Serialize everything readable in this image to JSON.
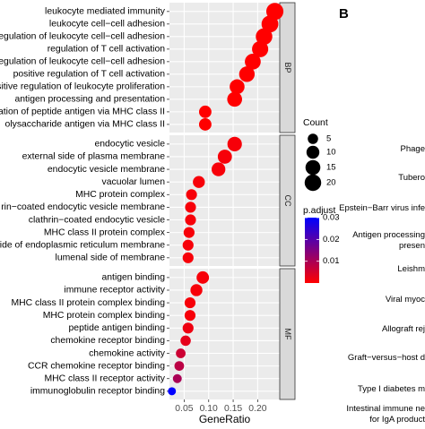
{
  "panel_b_label": "B",
  "chart_data": {
    "type": "scatter",
    "subtype": "dot-plot",
    "xlabel": "GeneRatio",
    "xlim": [
      0.02,
      0.245
    ],
    "xticks": [
      0.05,
      0.1,
      0.15,
      0.2
    ],
    "xtick_labels": [
      "0.05",
      "0.10",
      "0.15",
      "0.20"
    ],
    "grid": true,
    "background": "#ebebeb",
    "legend_placement": "right",
    "count_legend": {
      "title": "Count",
      "values": [
        5,
        10,
        15,
        20
      ],
      "labels": [
        "5",
        "10",
        "15",
        "20"
      ]
    },
    "color_legend": {
      "title": "p.adjust",
      "min": 0.0,
      "max": 0.03,
      "ticks": [
        0.01,
        0.02,
        0.03
      ],
      "tick_labels": [
        "0.01",
        "0.02",
        "0.03"
      ],
      "low_color": "#ff0000",
      "high_color": "#0000ff"
    },
    "facets": [
      {
        "name": "BP",
        "terms": [
          {
            "label": "leukocyte mediated immunity",
            "x": 0.235,
            "count": 22,
            "p": 0.0
          },
          {
            "label": "leukocyte cell−cell adhesion",
            "x": 0.225,
            "count": 21,
            "p": 0.0
          },
          {
            "label": "regulation of leukocyte cell−cell adhesion",
            "x": 0.213,
            "count": 20,
            "p": 0.0
          },
          {
            "label": "regulation of T cell activation",
            "x": 0.205,
            "count": 19,
            "p": 0.0
          },
          {
            "label": "regulation of leukocyte cell−cell adhesion",
            "x": 0.19,
            "count": 18,
            "p": 0.0
          },
          {
            "label": "positive regulation of T cell activation",
            "x": 0.178,
            "count": 17,
            "p": 0.0
          },
          {
            "label": "positive regulation of leukocyte proliferation",
            "x": 0.158,
            "count": 15,
            "p": 0.0
          },
          {
            "label": "antigen processing and presentation",
            "x": 0.153,
            "count": 15,
            "p": 0.0
          },
          {
            "label": "ation of peptide antigen via MHC class II",
            "x": 0.093,
            "count": 9,
            "p": 0.0
          },
          {
            "label": "olysaccharide antigen via MHC class II",
            "x": 0.093,
            "count": 9,
            "p": 0.0
          }
        ]
      },
      {
        "name": "CC",
        "terms": [
          {
            "label": "endocytic vesicle",
            "x": 0.153,
            "count": 14,
            "p": 0.001
          },
          {
            "label": "external side of plasma membrane",
            "x": 0.133,
            "count": 13,
            "p": 0.001
          },
          {
            "label": "endocytic vesicle membrane",
            "x": 0.12,
            "count": 12,
            "p": 0.001
          },
          {
            "label": "vacuolar lumen",
            "x": 0.08,
            "count": 8,
            "p": 0.001
          },
          {
            "label": "MHC protein complex",
            "x": 0.065,
            "count": 6,
            "p": 0.001
          },
          {
            "label": "rin−coated endocytic vesicle membrane",
            "x": 0.063,
            "count": 6,
            "p": 0.001
          },
          {
            "label": "clathrin−coated endocytic vesicle",
            "x": 0.063,
            "count": 6,
            "p": 0.001
          },
          {
            "label": "MHC class II protein complex",
            "x": 0.06,
            "count": 6,
            "p": 0.001
          },
          {
            "label": "ide of endoplasmic reticulum membrane",
            "x": 0.058,
            "count": 6,
            "p": 0.001
          },
          {
            "label": "lumenal side of membrane",
            "x": 0.058,
            "count": 6,
            "p": 0.001
          }
        ]
      },
      {
        "name": "MF",
        "terms": [
          {
            "label": "antigen binding",
            "x": 0.088,
            "count": 9,
            "p": 0.001
          },
          {
            "label": "immune receptor activity",
            "x": 0.075,
            "count": 8,
            "p": 0.001
          },
          {
            "label": "MHC class II protein complex binding",
            "x": 0.062,
            "count": 6,
            "p": 0.001
          },
          {
            "label": "MHC protein complex binding",
            "x": 0.062,
            "count": 6,
            "p": 0.001
          },
          {
            "label": "peptide antigen binding",
            "x": 0.058,
            "count": 6,
            "p": 0.002
          },
          {
            "label": "chemokine receptor binding",
            "x": 0.053,
            "count": 5,
            "p": 0.003
          },
          {
            "label": "chemokine activity",
            "x": 0.043,
            "count": 4,
            "p": 0.006
          },
          {
            "label": "CCR chemokine receptor binding",
            "x": 0.04,
            "count": 4,
            "p": 0.008
          },
          {
            "label": "MHC class II receptor activity",
            "x": 0.036,
            "count": 3,
            "p": 0.01
          },
          {
            "label": "immunoglobulin receptor binding",
            "x": 0.025,
            "count": 2,
            "p": 0.032
          }
        ]
      }
    ]
  },
  "panel_b_labels": [
    "Phage",
    "Tubero",
    "Epstein−Barr virus infe",
    "Antigen processing",
    "presen",
    "Leishm",
    "Viral myoc",
    "Allograft rej",
    "Graft−versus−host d",
    "Type I diabetes m",
    "Intestinal immune ne",
    "for IgA product"
  ]
}
